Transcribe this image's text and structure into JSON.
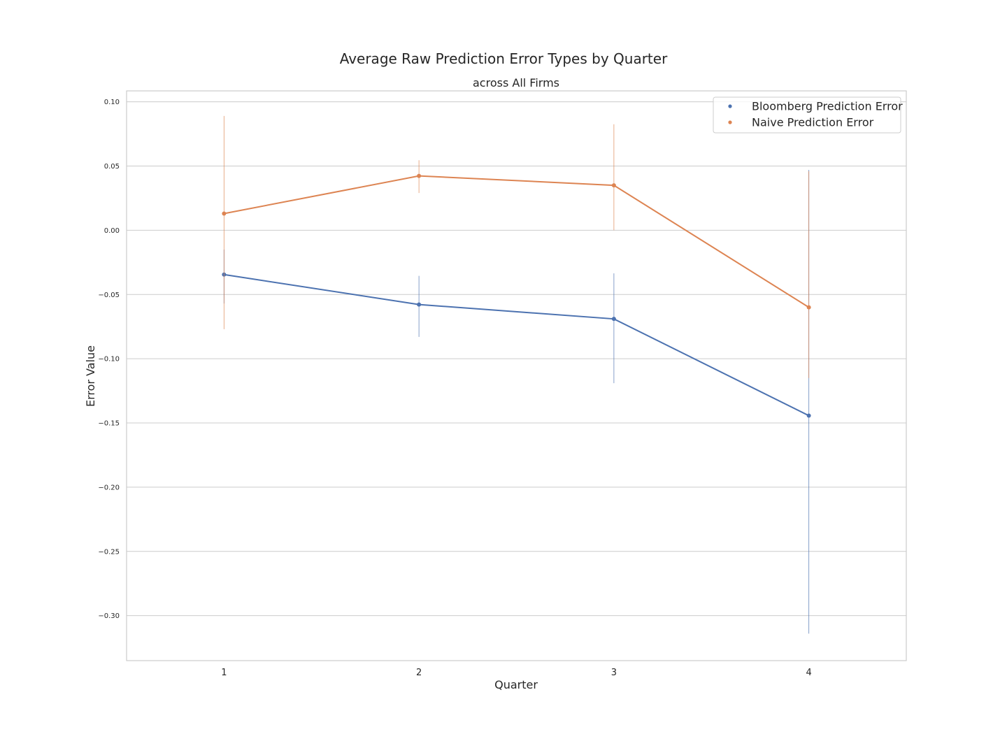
{
  "chart_data": {
    "type": "line",
    "title": "Average Raw Prediction Error Types by Quarter",
    "subtitle": "across All Firms",
    "xlabel": "Quarter",
    "ylabel": "Error Value",
    "categories": [
      "1",
      "2",
      "3",
      "4"
    ],
    "yticks": [
      "0.10",
      "0.05",
      "0.00",
      "−0.05",
      "−0.10",
      "−0.15",
      "−0.20",
      "−0.25",
      "−0.30"
    ],
    "ytick_values": [
      0.1,
      0.05,
      0.0,
      -0.05,
      -0.1,
      -0.15,
      -0.2,
      -0.25,
      -0.3
    ],
    "ylim": [
      -0.335,
      0.1085
    ],
    "grid": "horizontal",
    "legend_position": "top-right",
    "series": [
      {
        "name": "Bloomberg Prediction Error",
        "color": "#4c72b0",
        "values": [
          -0.0345,
          -0.0578,
          -0.069,
          -0.1443
        ],
        "err_low": [
          -0.057,
          -0.083,
          -0.119,
          -0.314
        ],
        "err_high": [
          -0.015,
          -0.0355,
          -0.0335,
          0.047
        ]
      },
      {
        "name": "Naive Prediction Error",
        "color": "#dd8452",
        "values": [
          0.013,
          0.0423,
          0.035,
          -0.06
        ],
        "err_low": [
          -0.077,
          0.029,
          0.0,
          -0.115
        ],
        "err_high": [
          0.089,
          0.0545,
          0.0825,
          0.046
        ]
      }
    ]
  }
}
